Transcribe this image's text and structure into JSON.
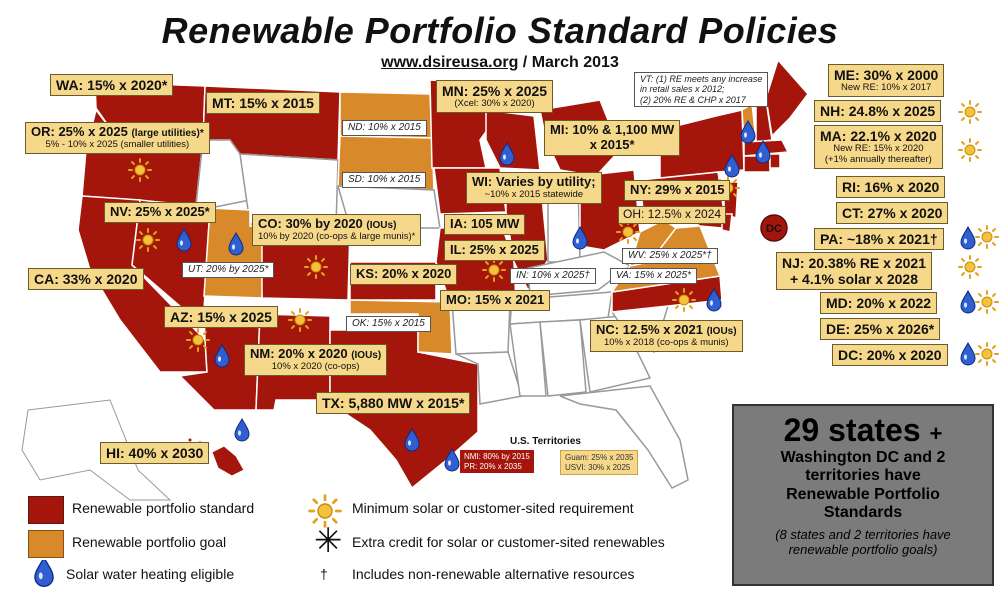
{
  "title": "Renewable Portfolio Standard Policies",
  "subtitle_url": "www.dsireusa.org",
  "subtitle_date": "/ March 2013",
  "colors": {
    "standard": "#a4150c",
    "goal": "#d8892a",
    "none": "#ffffff",
    "label_fill": "#f6d88a"
  },
  "labels": {
    "wa": "WA: 15% x 2020*",
    "mt": "MT: 15% x 2015",
    "or_main": "OR: 25% x 2025",
    "or_small": "(large utilities)*",
    "or_sub": "5% - 10% x 2025 (smaller utilities)",
    "nv": "NV: 25% x 2025*",
    "co_main": "CO: 30% by 2020",
    "co_small": "(IOUs)",
    "co_sub": "10% by 2020 (co-ops & large munis)*",
    "ca": "CA: 33% x 2020",
    "az": "AZ: 15% x 2025",
    "nm_main": "NM: 20% x 2020",
    "nm_small": "(IOUs)",
    "nm_sub": "10% x 2020 (co-ops)",
    "hi": "HI: 40% x 2030",
    "tx": "TX: 5,880 MW x 2015*",
    "mn": "MN: 25% x 2025",
    "mn_sub": "(Xcel: 30% x 2020)",
    "mi_line1": "MI: 10% & 1,100 MW",
    "mi_line2": "x 2015*",
    "wi_line1": "WI: Varies by utility;",
    "wi_line2": "~10% x 2015 statewide",
    "ia": "IA: 105 MW",
    "il": "IL: 25% x 2025",
    "ks": "KS: 20% x 2020",
    "mo": "MO: 15% x 2021",
    "ny": "NY: 29% x 2015",
    "oh": "OH: 12.5% x 2024",
    "nc_main": "NC: 12.5% x 2021",
    "nc_small": "(IOUs)",
    "nc_sub": "10% x 2018 (co-ops & munis)",
    "me": "ME: 30% x 2000",
    "me_sub": "New RE: 10% x 2017",
    "nh": "NH: 24.8% x 2025",
    "ma": "MA: 22.1% x 2020",
    "ma_sub1": "New RE: 15% x 2020",
    "ma_sub2": "(+1% annually thereafter)",
    "ri": "RI: 16% x 2020",
    "ct": "CT: 27% x 2020",
    "pa": "PA: ~18% x 2021†",
    "nj_line1": "NJ: 20.38% RE x 2021",
    "nj_line2": "+ 4.1% solar x 2028",
    "md": "MD: 20% x 2022",
    "de": "DE: 25% x 2026*",
    "dc": "DC: 20% x 2020",
    "dc_marker": "DC"
  },
  "notes": {
    "nd": "ND: 10% x 2015",
    "sd": "SD: 10% x 2015",
    "ut": "UT: 20% by 2025*",
    "ok": "OK: 15% x 2015",
    "in": "IN: 10% x 2025†",
    "va": "VA: 15% x 2025*",
    "wv": "WV: 25% x 2025*†",
    "vt_line1": "VT: (1) RE meets any increase",
    "vt_line2": "in retail sales x 2012;",
    "vt_line3": "(2) 20% RE & CHP x 2017"
  },
  "territories": {
    "title": "U.S. Territories",
    "nmi": "NMI: 80% by 2015",
    "pr": "PR: 20% x 2035",
    "guam": "Guam: 25% x 2035",
    "usvi": "USVI: 30% x 2025"
  },
  "legend": {
    "standard": "Renewable portfolio standard",
    "goal": "Renewable portfolio goal",
    "swh": "Solar water heating eligible",
    "solar": "Minimum solar or customer-sited requirement",
    "extra": "Extra credit for solar or customer-sited renewables",
    "dagger": "Includes non-renewable alternative resources",
    "extra_symbol": "✳",
    "dagger_symbol": "†"
  },
  "summary": {
    "count": "29 states",
    "plus": "+",
    "line1": "Washington DC and 2",
    "line2": "territories have",
    "line3": "Renewable Portfolio",
    "line4": "Standards",
    "foot1": "(8 states and 2 territories have",
    "foot2": "renewable portfolio goals)"
  }
}
